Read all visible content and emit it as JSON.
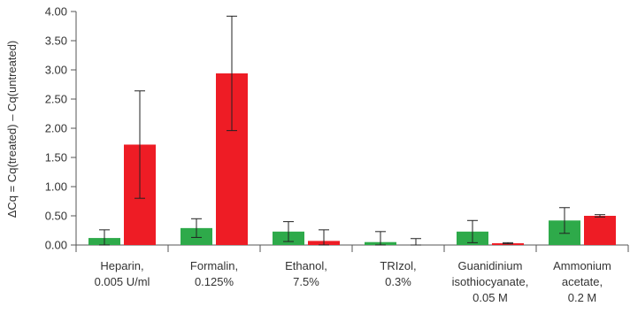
{
  "chart_data": {
    "type": "bar",
    "title": "",
    "xlabel": "",
    "ylabel": "ΔCq = Cq(treated) – Cq(untreated)",
    "ylim": [
      0,
      4
    ],
    "yticks": [
      "0.00",
      "0.50",
      "1.00",
      "1.50",
      "2.00",
      "2.50",
      "3.00",
      "3.50",
      "4.00"
    ],
    "grid": false,
    "legend": "none",
    "categories": [
      [
        "Heparin,",
        "0.005 U/ml"
      ],
      [
        "Formalin,",
        "0.125%"
      ],
      [
        "Ethanol,",
        "7.5%"
      ],
      [
        "TRIzol,",
        "0.3%"
      ],
      [
        "Guanidinium",
        "isothiocyanate,",
        "0.05 M"
      ],
      [
        "Ammonium",
        "acetate,",
        "0.2 M"
      ]
    ],
    "series": [
      {
        "color": "#2eaa4a",
        "values": [
          0.12,
          0.29,
          0.23,
          0.05,
          0.23,
          0.42
        ],
        "errors": [
          0.14,
          0.16,
          0.17,
          0.18,
          0.19,
          0.22
        ]
      },
      {
        "color": "#ee1c25",
        "values": [
          1.72,
          2.94,
          0.07,
          0.0,
          0.03,
          0.5
        ],
        "errors": [
          0.92,
          0.98,
          0.19,
          0.11,
          0.01,
          0.02
        ]
      }
    ]
  }
}
